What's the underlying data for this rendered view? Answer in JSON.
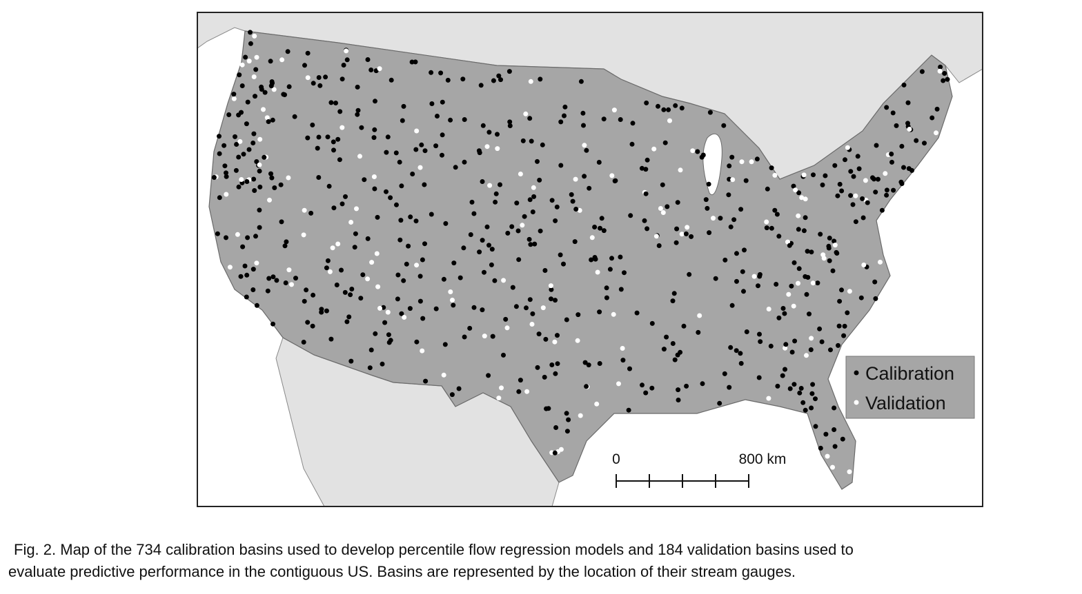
{
  "legend": {
    "items": [
      "Calibration",
      "Validation"
    ]
  },
  "scale_bar": {
    "start": "0",
    "end": "800 km"
  },
  "caption": {
    "lines": [
      "Fig. 2. Map of the 734 calibration basins used to develop percentile flow regression models and 184 validation basins used to",
      "evaluate predictive performance in the contiguous US. Basins are represented by the location of their stream gauges."
    ]
  }
}
